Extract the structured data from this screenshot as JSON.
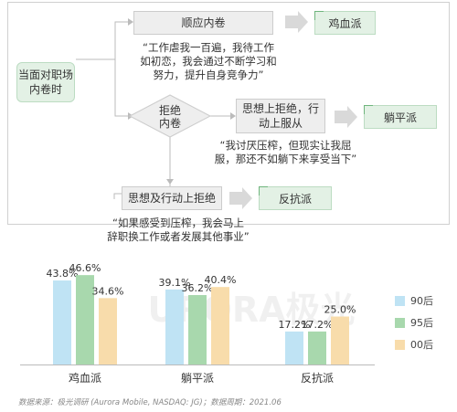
{
  "flow": {
    "start": "当面对职场\n内卷时",
    "follow": "顺应内卷",
    "chicken_tag": "鸡血派",
    "quote_follow": "“工作虐我一百遍，我待工作\n如初恋，我会通过不断学习和\n努力，提升自身竞争力”",
    "decision": "拒绝\n内卷",
    "reject_mind": "思想上拒绝，行\n动上服从",
    "lying_tag": "躺平派",
    "quote_lying": "“我讨厌压榨，但现实让我屈\n服，那还不如躺下来享受当下”",
    "reject_both": "思想及行动上拒绝",
    "resist_tag": "反抗派",
    "quote_resist": "“如果感受到压榨，我会马上\n辞职换工作或者发展其他事业”"
  },
  "colors": {
    "s90": "#bfe3f4",
    "s95": "#a8d8ad",
    "s00": "#f8dcab",
    "arrow": "#d9d9d9"
  },
  "chart_data": {
    "type": "bar",
    "categories": [
      "鸡血派",
      "躺平派",
      "反抗派"
    ],
    "series": [
      {
        "name": "90后",
        "values": [
          43.8,
          39.1,
          17.2
        ],
        "labels": [
          "43.8%",
          "39.1%",
          "17.2%"
        ]
      },
      {
        "name": "95后",
        "values": [
          46.6,
          36.2,
          17.2
        ],
        "labels": [
          "46.6%",
          "36.2%",
          "17.2%"
        ]
      },
      {
        "name": "00后",
        "values": [
          34.6,
          40.4,
          25.0
        ],
        "labels": [
          "34.6%",
          "40.4%",
          "25.0%"
        ]
      }
    ],
    "ylim": [
      0,
      50
    ],
    "legend": "right",
    "grid": false,
    "watermark": "URORA极光"
  },
  "footer": "数据来源：极光调研 (Aurora Mobile, NASDAQ: JG)；数据周期：2021.06"
}
